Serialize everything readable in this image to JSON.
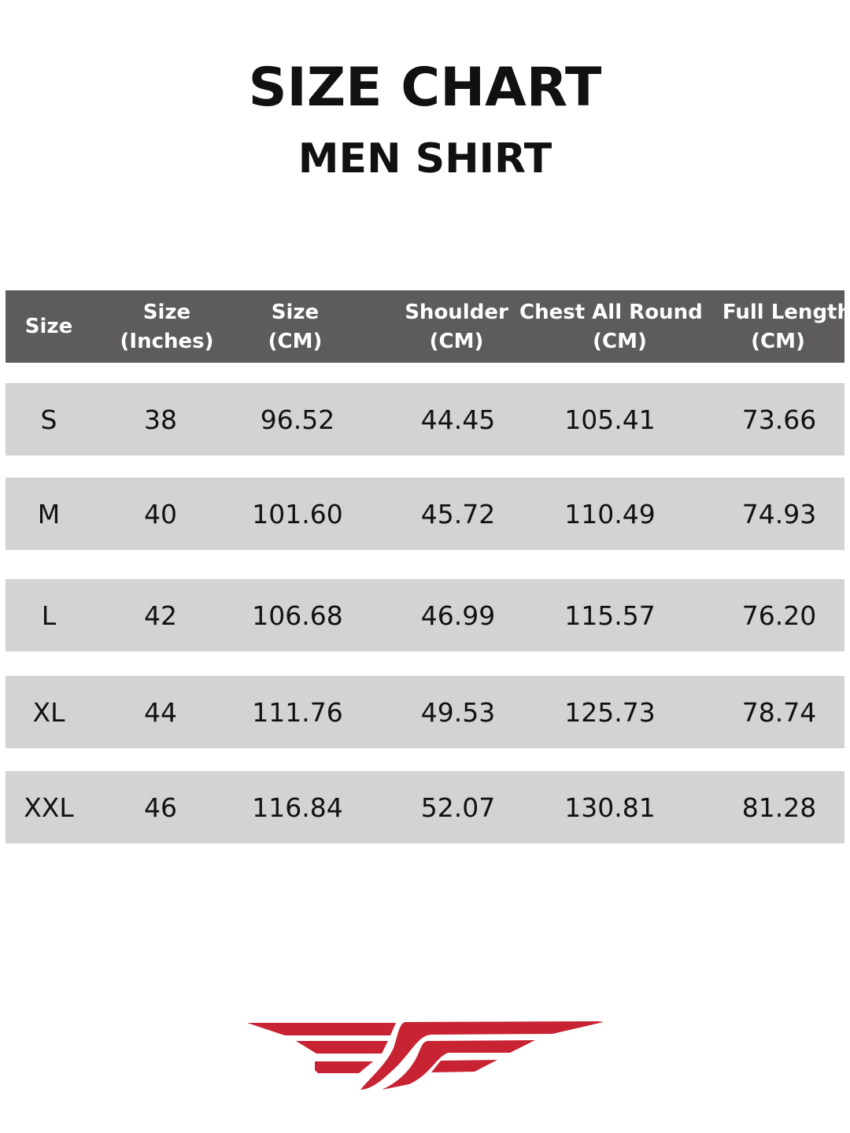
{
  "title": "SIZE CHART",
  "subtitle": "MEN SHIRT",
  "colors": {
    "header_bg": "#5d5b5c",
    "row_bg": "#d3d3d3",
    "logo": "#c82333"
  },
  "logo": "winged-logo",
  "table": {
    "headers": [
      {
        "line1": "Size",
        "line2": ""
      },
      {
        "line1": "Size",
        "line2": "(Inches)"
      },
      {
        "line1": "Size",
        "line2": "(CM)"
      },
      {
        "line1": "Shoulder",
        "line2": "(CM)"
      },
      {
        "line1": "Chest All Round",
        "line2": "(CM)"
      },
      {
        "line1": "Full Length",
        "line2": "(CM)"
      }
    ],
    "rows": [
      [
        "S",
        "38",
        "96.52",
        "44.45",
        "105.41",
        "73.66"
      ],
      [
        "M",
        "40",
        "101.60",
        "45.72",
        "110.49",
        "74.93"
      ],
      [
        "L",
        "42",
        "106.68",
        "46.99",
        "115.57",
        "76.20"
      ],
      [
        "XL",
        "44",
        "111.76",
        "49.53",
        "125.73",
        "78.74"
      ],
      [
        "XXL",
        "46",
        "116.84",
        "52.07",
        "130.81",
        "81.28"
      ]
    ]
  }
}
